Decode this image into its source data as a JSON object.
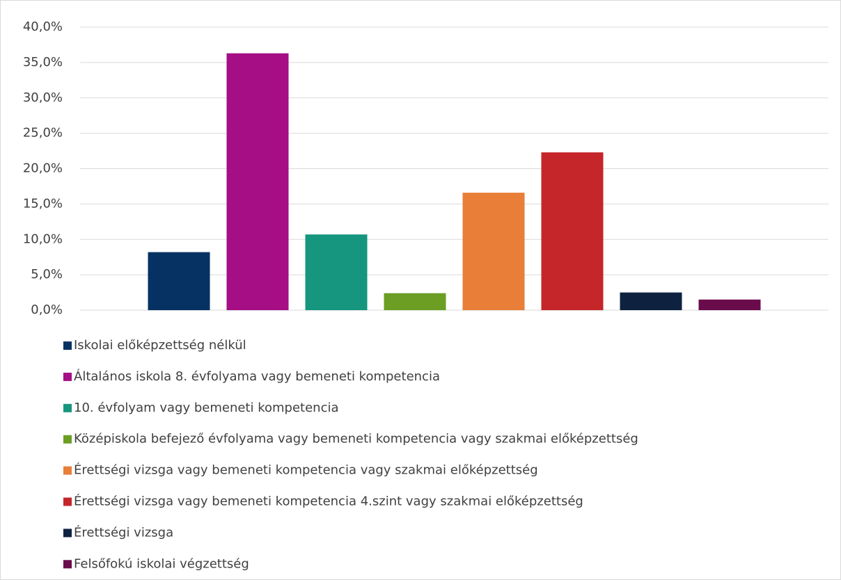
{
  "chart_data": {
    "type": "bar",
    "ylim": [
      0,
      40
    ],
    "yticks": [
      {
        "value": 0,
        "label": "0,0%"
      },
      {
        "value": 5,
        "label": "5,0%"
      },
      {
        "value": 10,
        "label": "10,0%"
      },
      {
        "value": 15,
        "label": "15,0%"
      },
      {
        "value": 20,
        "label": "20,0%"
      },
      {
        "value": 25,
        "label": "25,0%"
      },
      {
        "value": 30,
        "label": "30,0%"
      },
      {
        "value": 35,
        "label": "35,0%"
      },
      {
        "value": 40,
        "label": "40,0%"
      }
    ],
    "grid": true,
    "legend": "bottom",
    "series": [
      {
        "name": "Iskolai előképzettség nélkül",
        "color": "#063263",
        "values": [
          8.2
        ]
      },
      {
        "name": "Általános iskola 8. évfolyama vagy bemeneti kompetencia",
        "color": "#a50e84",
        "values": [
          36.3
        ]
      },
      {
        "name": "10. évfolyam vagy bemeneti kompetencia",
        "color": "#16967e",
        "values": [
          10.7
        ]
      },
      {
        "name": "Középiskola befejező évfolyama vagy bemeneti kompetencia vagy szakmai előképzettség",
        "color": "#6b9e22",
        "values": [
          2.4
        ]
      },
      {
        "name": "Érettségi vizsga vagy bemeneti kompetencia vagy szakmai előképzettség",
        "color": "#e87e38",
        "values": [
          16.6
        ]
      },
      {
        "name": "Érettségi vizsga vagy bemeneti kompetencia 4.szint vagy szakmai előképzettség",
        "color": "#c4262a",
        "values": [
          22.3
        ]
      },
      {
        "name": "Érettségi vizsga",
        "color": "#0e2240",
        "values": [
          2.5
        ]
      },
      {
        "name": "Felsőfokú iskolai végzettség",
        "color": "#6a0b4c",
        "values": [
          1.5
        ]
      }
    ]
  }
}
